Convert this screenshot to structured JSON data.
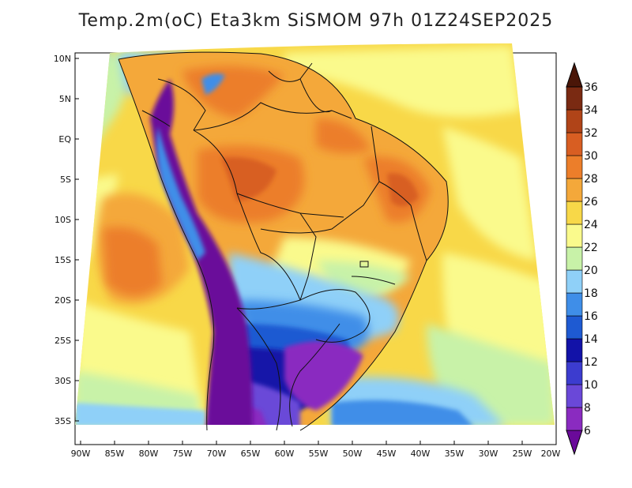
{
  "title": "Temp.2m(oC) Eta3km SiSMOM 97h 01Z24SEP2025",
  "map": {
    "variable": "2 m air temperature",
    "unit": "oC",
    "lat_ticks": [
      "10N",
      "5N",
      "EQ",
      "5S",
      "10S",
      "15S",
      "20S",
      "25S",
      "30S",
      "35S"
    ],
    "lon_ticks": [
      "90W",
      "85W",
      "80W",
      "75W",
      "70W",
      "65W",
      "60W",
      "55W",
      "50W",
      "45W",
      "40W",
      "35W",
      "30W",
      "25W",
      "20W"
    ]
  },
  "colorbar": {
    "labels": [
      "6",
      "8",
      "10",
      "12",
      "14",
      "16",
      "18",
      "20",
      "22",
      "24",
      "26",
      "28",
      "30",
      "32",
      "34",
      "36"
    ],
    "colors": [
      "#6a0a9a",
      "#8a2bc0",
      "#6a48d8",
      "#3c3ccf",
      "#1212a8",
      "#1e5ad2",
      "#3f8ee8",
      "#8fd0f8",
      "#c8f2a8",
      "#fafa8c",
      "#f8d848",
      "#f4a83a",
      "#ec7e2a",
      "#d85e22",
      "#b04418",
      "#7a2a12",
      "#4a1608"
    ]
  }
}
